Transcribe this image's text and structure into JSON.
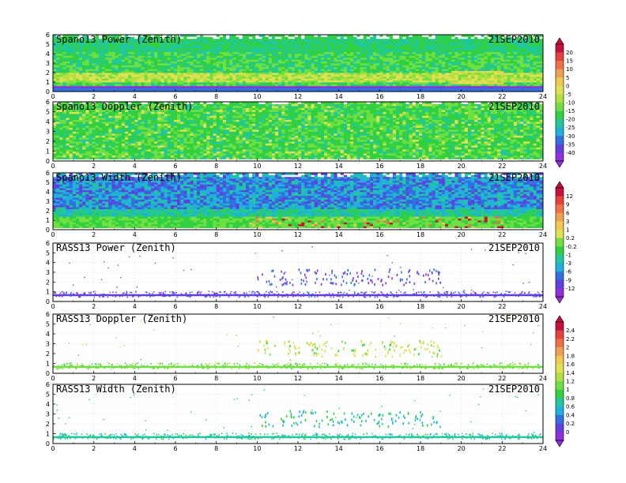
{
  "chart_data": [
    {
      "type": "heatmap",
      "title": "Spano13 Power (Zenith)",
      "date": "21SEP2010",
      "x_ticks": [
        "0",
        "2",
        "4",
        "6",
        "8",
        "10",
        "12",
        "14",
        "16",
        "18",
        "20",
        "22",
        "24"
      ],
      "y_ticks": [
        "0",
        "1",
        "2",
        "3",
        "4",
        "5",
        "6"
      ],
      "xlim": [
        0,
        24
      ],
      "ylim": [
        0,
        6
      ],
      "colorbar_group": "A",
      "description_values": {
        "dominant": "green/cyan",
        "high_band_height": [
          1,
          2
        ]
      }
    },
    {
      "type": "heatmap",
      "title": "Spano13 Doppler (Zenith)",
      "date": "21SEP2010",
      "x_ticks": [
        "0",
        "2",
        "4",
        "6",
        "8",
        "10",
        "12",
        "14",
        "16",
        "18",
        "20",
        "22",
        "24"
      ],
      "y_ticks": [
        "0",
        "1",
        "2",
        "3",
        "4",
        "5",
        "6"
      ],
      "xlim": [
        0,
        24
      ],
      "ylim": [
        0,
        6
      ],
      "colorbar_group": "A"
    },
    {
      "type": "heatmap",
      "title": "Spano13 Width (Zenith)",
      "date": "21SEP2010",
      "x_ticks": [
        "0",
        "2",
        "4",
        "6",
        "8",
        "10",
        "12",
        "14",
        "16",
        "18",
        "20",
        "22",
        "24"
      ],
      "y_ticks": [
        "0",
        "1",
        "2",
        "3",
        "4",
        "5",
        "6"
      ],
      "xlim": [
        0,
        24
      ],
      "ylim": [
        0,
        6
      ],
      "colorbar_group": "B"
    },
    {
      "type": "scatter",
      "title": "RASS13 Power (Zenith)",
      "date": "21SEP2010",
      "x_ticks": [
        "0",
        "2",
        "4",
        "6",
        "8",
        "10",
        "12",
        "14",
        "16",
        "18",
        "20",
        "22",
        "24"
      ],
      "y_ticks": [
        "0",
        "1",
        "2",
        "3",
        "4",
        "5",
        "6"
      ],
      "xlim": [
        0,
        24
      ],
      "ylim": [
        0,
        6
      ],
      "colorbar_group": "B"
    },
    {
      "type": "scatter",
      "title": "RASS13 Doppler (Zenith)",
      "date": "21SEP2010",
      "x_ticks": [
        "0",
        "2",
        "4",
        "6",
        "8",
        "10",
        "12",
        "14",
        "16",
        "18",
        "20",
        "22",
        "24"
      ],
      "y_ticks": [
        "0",
        "1",
        "2",
        "3",
        "4",
        "5",
        "6"
      ],
      "xlim": [
        0,
        24
      ],
      "ylim": [
        0,
        6
      ],
      "colorbar_group": "C"
    },
    {
      "type": "scatter",
      "title": "RASS13 Width (Zenith)",
      "date": "21SEP2010",
      "x_ticks": [
        "0",
        "2",
        "4",
        "6",
        "8",
        "10",
        "12",
        "14",
        "16",
        "18",
        "20",
        "22",
        "24"
      ],
      "y_ticks": [
        "0",
        "1",
        "2",
        "3",
        "4",
        "5",
        "6"
      ],
      "xlim": [
        0,
        24
      ],
      "ylim": [
        0,
        6
      ],
      "colorbar_group": "C"
    }
  ],
  "colorbars": {
    "A": {
      "labels": [
        "20",
        "15",
        "10",
        "5",
        "0",
        "-5",
        "-10",
        "-15",
        "-20",
        "-25",
        "-30",
        "-35",
        "-40"
      ],
      "colors": [
        "#c8103a",
        "#e8403c",
        "#f07048",
        "#f0a050",
        "#f0c850",
        "#e0e050",
        "#b0e040",
        "#70e040",
        "#30d040",
        "#20c8a0",
        "#20b0e0",
        "#3070e0",
        "#6040e0",
        "#9030e0"
      ]
    },
    "B": {
      "labels": [
        "12",
        "9",
        "6",
        "3",
        "1",
        "0.2",
        "-0.2",
        "-1",
        "-3",
        "-6",
        "-9",
        "-12"
      ],
      "colors": [
        "#c8103a",
        "#e8403c",
        "#f07048",
        "#f0a050",
        "#f0c850",
        "#e0e050",
        "#70e040",
        "#30d040",
        "#20c8a0",
        "#20b0e0",
        "#3070e0",
        "#6040e0",
        "#9030e0"
      ]
    },
    "C": {
      "labels": [
        "2.4",
        "2.2",
        "2",
        "1.8",
        "1.6",
        "1.4",
        "1.2",
        "1",
        "0.8",
        "0.6",
        "0.4",
        "0.2",
        "0"
      ],
      "colors": [
        "#c8103a",
        "#e8403c",
        "#f07048",
        "#f0a050",
        "#f0c850",
        "#e0e050",
        "#b0e040",
        "#70e040",
        "#30d040",
        "#20c8a0",
        "#20b0e0",
        "#3070e0",
        "#6040e0",
        "#9030e0"
      ]
    }
  }
}
